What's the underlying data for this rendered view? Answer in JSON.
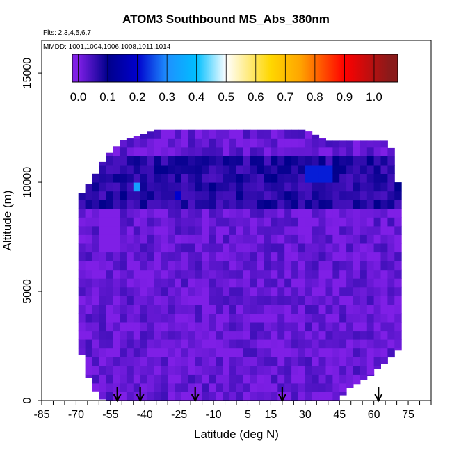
{
  "chart_data": {
    "type": "heatmap",
    "title": "ATOM3 Southbound MS_Abs_380nm",
    "subtitle_flights": "Flts: 2,3,4,5,6,7",
    "subtitle_dates": "MMDD: 1001,1004,1006,1008,1011,1014",
    "xlabel": "Latitude (deg N)",
    "ylabel": "Altitude (m)",
    "xlim": [
      -85,
      85
    ],
    "ylim": [
      0,
      16500
    ],
    "x_ticks": [
      -85,
      -70,
      -55,
      -40,
      -25,
      -10,
      5,
      15,
      30,
      45,
      60,
      75
    ],
    "x_tick_labels": [
      "-85",
      "-70",
      "-55",
      "-40",
      "-25",
      "-10",
      "5",
      "15",
      "30",
      "45",
      "60",
      "75"
    ],
    "x_minor_step": 5,
    "y_ticks": [
      0,
      5000,
      10000,
      15000
    ],
    "y_tick_labels": [
      "0",
      "5000",
      "10000",
      "15000"
    ],
    "colorbar": {
      "range": [
        -0.02,
        1.08
      ],
      "tick_values": [
        0.0,
        0.1,
        0.2,
        0.3,
        0.4,
        0.5,
        0.6,
        0.7,
        0.8,
        0.9,
        1.0
      ],
      "tick_labels": [
        "0.0",
        "0.1",
        "0.2",
        "0.3",
        "0.4",
        "0.5",
        "0.6",
        "0.7",
        "0.8",
        "0.9",
        "1.0"
      ],
      "colors": [
        "#7f1fe6",
        "#00008b",
        "#0000cd",
        "#1e90ff",
        "#00bfff",
        "#ffffff",
        "#ffd700",
        "#ffa500",
        "#ff0000",
        "#8b1a1a"
      ],
      "color_stops": [
        0.0,
        0.1,
        0.2,
        0.3,
        0.4,
        0.5,
        0.65,
        0.75,
        0.9,
        1.05
      ]
    },
    "data_extent": {
      "lat_range": [
        -69,
        70
      ],
      "top_altitude_by_lat": [
        [
          -69,
          9300
        ],
        [
          -66,
          9700
        ],
        [
          -62,
          10300
        ],
        [
          -57,
          11200
        ],
        [
          -50,
          11900
        ],
        [
          -35,
          12400
        ],
        [
          30,
          12400
        ],
        [
          40,
          11900
        ],
        [
          65,
          11900
        ],
        [
          68,
          11500
        ],
        [
          70,
          10000
        ]
      ],
      "bottom_altitude_by_lat": [
        [
          -69,
          2700
        ],
        [
          -66,
          1500
        ],
        [
          -64,
          900
        ],
        [
          -62,
          500
        ],
        [
          -58,
          0
        ],
        [
          45,
          0
        ],
        [
          48,
          500
        ],
        [
          53,
          800
        ],
        [
          58,
          1100
        ],
        [
          62,
          1500
        ],
        [
          66,
          1800
        ],
        [
          70,
          2300
        ]
      ],
      "background_value": 0.02
    },
    "high_value_patches": [
      {
        "lat": [
          31,
          43
        ],
        "alt": [
          9900,
          10500
        ],
        "value": 0.22
      },
      {
        "lat": [
          -45,
          -42
        ],
        "alt": [
          9500,
          10000
        ],
        "value": 0.33
      },
      {
        "lat": [
          -28,
          -24
        ],
        "alt": [
          8900,
          9500
        ],
        "value": 0.2
      },
      {
        "lat": [
          -60,
          -50
        ],
        "alt": [
          6500,
          8500
        ],
        "value": 0.0
      }
    ],
    "flight_arrow_latitudes": [
      -52,
      -42,
      -18,
      20,
      62
    ]
  }
}
